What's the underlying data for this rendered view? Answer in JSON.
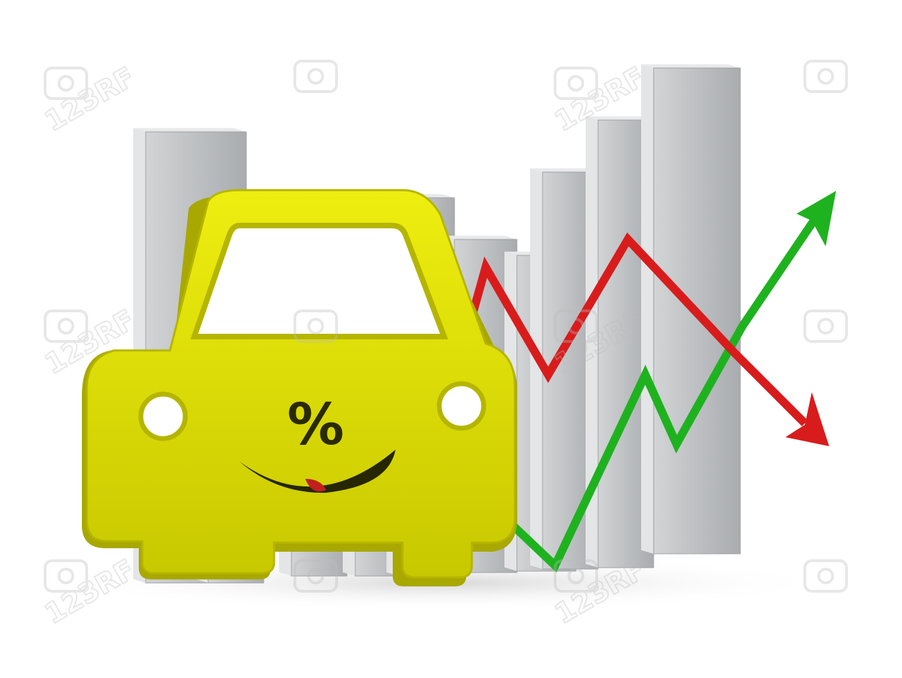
{
  "scene": {
    "description_free": true,
    "colors": {
      "background": "#ffffff",
      "bar_front": "#b9bbbd",
      "bar_top": "#e8e9ea",
      "bar_side": "#8e9194",
      "car_body": "#e0e000",
      "car_dark": "#9a9a00",
      "line_up": "#1fb21f",
      "line_down": "#d81c1c"
    },
    "car_symbol": "%",
    "watermark_text": "123RF",
    "icons": [
      "car-icon",
      "percent-icon",
      "smile-icon",
      "trend-up-arrow-icon",
      "trend-down-arrow-icon",
      "camera-watermark-icon"
    ]
  }
}
